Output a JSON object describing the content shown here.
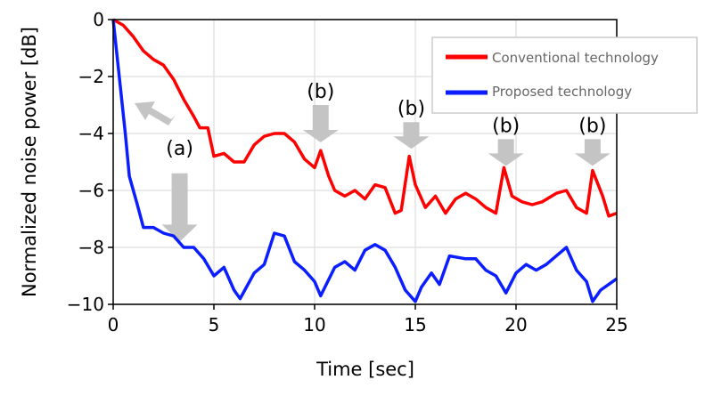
{
  "chart_data": {
    "type": "line",
    "xlabel": "Time [sec]",
    "ylabel": "Normalized noise power [dB]",
    "xlim": [
      0,
      25
    ],
    "ylim": [
      -10,
      0
    ],
    "xticks": [
      0,
      5,
      10,
      15,
      20,
      25
    ],
    "yticks": [
      0,
      -2,
      -4,
      -6,
      -8,
      -10
    ],
    "grid": true,
    "legend_position": "top-right",
    "series": [
      {
        "name": "Conventional technology",
        "color": "#ff0000",
        "x": [
          0,
          0.5,
          1,
          1.5,
          2,
          2.5,
          3,
          3.5,
          4,
          4.3,
          4.7,
          5,
          5.5,
          6,
          6.5,
          7,
          7.5,
          8,
          8.5,
          9,
          9.5,
          10,
          10.3,
          10.7,
          11,
          11.5,
          12,
          12.5,
          13,
          13.5,
          14,
          14.3,
          14.7,
          15,
          15.5,
          16,
          16.5,
          17,
          17.5,
          18,
          18.5,
          19,
          19.4,
          19.8,
          20.3,
          20.8,
          21.3,
          22,
          22.5,
          23,
          23.5,
          23.8,
          24.3,
          24.6,
          25
        ],
        "y": [
          0,
          -0.2,
          -0.6,
          -1.1,
          -1.4,
          -1.6,
          -2.1,
          -2.8,
          -3.4,
          -3.8,
          -3.8,
          -4.8,
          -4.7,
          -5.0,
          -5.0,
          -4.4,
          -4.1,
          -4.0,
          -4.0,
          -4.3,
          -4.9,
          -5.2,
          -4.6,
          -5.5,
          -6.0,
          -6.2,
          -6.0,
          -6.3,
          -5.8,
          -5.9,
          -6.8,
          -6.7,
          -4.8,
          -5.8,
          -6.6,
          -6.2,
          -6.8,
          -6.3,
          -6.1,
          -6.3,
          -6.6,
          -6.8,
          -5.2,
          -6.2,
          -6.4,
          -6.5,
          -6.4,
          -6.1,
          -6.0,
          -6.6,
          -6.8,
          -5.3,
          -6.2,
          -6.9,
          -6.8
        ]
      },
      {
        "name": "Proposed technology",
        "color": "#0a1eff",
        "x": [
          0,
          0.3,
          0.6,
          0.8,
          1.2,
          1.5,
          2,
          2.5,
          3,
          3.5,
          4,
          4.5,
          5,
          5.5,
          6,
          6.3,
          7,
          7.5,
          8,
          8.5,
          9,
          9.5,
          10,
          10.3,
          11,
          11.5,
          12,
          12.5,
          13,
          13.5,
          14,
          14.5,
          15,
          15.3,
          15.8,
          16.2,
          16.7,
          17.5,
          18,
          18.5,
          19,
          19.5,
          20,
          20.5,
          21,
          21.5,
          22,
          22.5,
          23,
          23.5,
          23.8,
          24.2,
          24.6,
          25
        ],
        "y": [
          0,
          -2,
          -4,
          -5.5,
          -6.5,
          -7.3,
          -7.3,
          -7.5,
          -7.6,
          -8.0,
          -8.0,
          -8.4,
          -9.0,
          -8.7,
          -9.5,
          -9.8,
          -8.9,
          -8.6,
          -7.5,
          -7.6,
          -8.5,
          -8.8,
          -9.2,
          -9.7,
          -8.7,
          -8.5,
          -8.8,
          -8.1,
          -7.9,
          -8.1,
          -8.7,
          -9.5,
          -9.9,
          -9.4,
          -8.9,
          -9.3,
          -8.3,
          -8.4,
          -8.4,
          -8.8,
          -9.0,
          -9.6,
          -8.9,
          -8.6,
          -8.8,
          -8.6,
          -8.3,
          -8.0,
          -8.8,
          -9.2,
          -9.9,
          -9.5,
          -9.3,
          -9.1
        ]
      }
    ],
    "annotations": [
      {
        "text": "(a)",
        "x": 3.3,
        "y": -4.5
      },
      {
        "text": "(b)",
        "x": 10.3,
        "y": -2.5
      },
      {
        "text": "(b)",
        "x": 14.8,
        "y": -3.1
      },
      {
        "text": "(b)",
        "x": 19.5,
        "y": -3.7
      },
      {
        "text": "(b)",
        "x": 23.8,
        "y": -3.7
      }
    ]
  }
}
